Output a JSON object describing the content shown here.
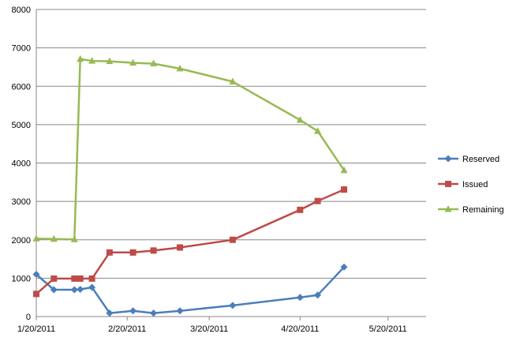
{
  "chart_data": {
    "type": "line",
    "title": "",
    "xlabel": "",
    "ylabel": "",
    "x_axis": {
      "type": "date",
      "range": [
        "2011-01-20",
        "2011-06-02"
      ],
      "tick_dates": [
        "2011-01-20",
        "2011-02-20",
        "2011-03-20",
        "2011-04-20",
        "2011-05-20"
      ],
      "tick_labels": [
        "1/20/2011",
        "2/20/2011",
        "3/20/2011",
        "4/20/2011",
        "5/20/2011"
      ]
    },
    "y_axis": {
      "range": [
        0,
        8000
      ],
      "ticks": [
        0,
        1000,
        2000,
        3000,
        4000,
        5000,
        6000,
        7000,
        8000
      ]
    },
    "grid": "horizontal",
    "legend_position": "right",
    "series": [
      {
        "name": "Reserved",
        "color": "#4a7ebb",
        "marker": "diamond",
        "points": [
          [
            "2011-01-20",
            1100
          ],
          [
            "2011-01-26",
            700
          ],
          [
            "2011-02-02",
            700
          ],
          [
            "2011-02-04",
            710
          ],
          [
            "2011-02-08",
            760
          ],
          [
            "2011-02-14",
            90
          ],
          [
            "2011-02-22",
            150
          ],
          [
            "2011-03-01",
            90
          ],
          [
            "2011-03-10",
            150
          ],
          [
            "2011-03-28",
            290
          ],
          [
            "2011-04-20",
            500
          ],
          [
            "2011-04-26",
            560
          ],
          [
            "2011-05-05",
            1290
          ]
        ]
      },
      {
        "name": "Issued",
        "color": "#be4b48",
        "marker": "square",
        "points": [
          [
            "2011-01-20",
            590
          ],
          [
            "2011-01-26",
            990
          ],
          [
            "2011-02-02",
            990
          ],
          [
            "2011-02-04",
            990
          ],
          [
            "2011-02-08",
            990
          ],
          [
            "2011-02-14",
            1670
          ],
          [
            "2011-02-22",
            1670
          ],
          [
            "2011-03-01",
            1720
          ],
          [
            "2011-03-10",
            1800
          ],
          [
            "2011-03-28",
            2000
          ],
          [
            "2011-04-20",
            2780
          ],
          [
            "2011-04-26",
            3010
          ],
          [
            "2011-05-05",
            3310
          ]
        ]
      },
      {
        "name": "Remaining",
        "color": "#98b954",
        "marker": "triangle",
        "points": [
          [
            "2011-01-20",
            2030
          ],
          [
            "2011-01-26",
            2020
          ],
          [
            "2011-02-02",
            2010
          ],
          [
            "2011-02-04",
            6710
          ],
          [
            "2011-02-08",
            6660
          ],
          [
            "2011-02-14",
            6650
          ],
          [
            "2011-02-22",
            6610
          ],
          [
            "2011-03-01",
            6590
          ],
          [
            "2011-03-10",
            6460
          ],
          [
            "2011-03-28",
            6120
          ],
          [
            "2011-04-20",
            5120
          ],
          [
            "2011-04-26",
            4830
          ],
          [
            "2011-05-05",
            3810
          ]
        ]
      }
    ]
  }
}
